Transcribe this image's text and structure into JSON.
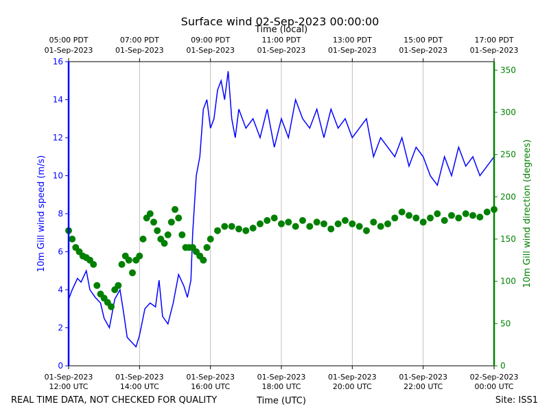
{
  "chart_data": {
    "type": "line",
    "title": "Surface wind 02-Sep-2023 00:00:00",
    "xlabel_bottom": "Time (UTC)",
    "xlabel_top": "Time (local)",
    "ylabel_left": "10m Gill wind speed (m/s)",
    "ylabel_right": "10m Gill wind direction (degrees)",
    "footer_left": "REAL TIME DATA, NOT CHECKED FOR QUALITY",
    "footer_right": "Site: ISS1",
    "xlim_hours": [
      12,
      24
    ],
    "ylim_left": [
      0,
      16
    ],
    "ylim_right": [
      0,
      360
    ],
    "grid": "vertical",
    "colors": {
      "speed": "#0000ff",
      "direction": "#008000",
      "axis": "#000000",
      "grid": "#b0b0b0"
    },
    "left_ticks": [
      0,
      2,
      4,
      6,
      8,
      10,
      12,
      14,
      16
    ],
    "right_ticks": [
      0,
      50,
      100,
      150,
      200,
      250,
      300,
      350
    ],
    "bottom_ticks": [
      {
        "hour": 12,
        "date": "01-Sep-2023",
        "time": "12:00 UTC"
      },
      {
        "hour": 14,
        "date": "01-Sep-2023",
        "time": "14:00 UTC"
      },
      {
        "hour": 16,
        "date": "01-Sep-2023",
        "time": "16:00 UTC"
      },
      {
        "hour": 18,
        "date": "01-Sep-2023",
        "time": "18:00 UTC"
      },
      {
        "hour": 20,
        "date": "01-Sep-2023",
        "time": "20:00 UTC"
      },
      {
        "hour": 22,
        "date": "01-Sep-2023",
        "time": "22:00 UTC"
      },
      {
        "hour": 24,
        "date": "02-Sep-2023",
        "time": "00:00 UTC"
      }
    ],
    "top_ticks": [
      {
        "hour": 12,
        "time": "05:00 PDT",
        "date": "01-Sep-2023"
      },
      {
        "hour": 14,
        "time": "07:00 PDT",
        "date": "01-Sep-2023"
      },
      {
        "hour": 16,
        "time": "09:00 PDT",
        "date": "01-Sep-2023"
      },
      {
        "hour": 18,
        "time": "11:00 PDT",
        "date": "01-Sep-2023"
      },
      {
        "hour": 20,
        "time": "13:00 PDT",
        "date": "01-Sep-2023"
      },
      {
        "hour": 22,
        "time": "15:00 PDT",
        "date": "01-Sep-2023"
      },
      {
        "hour": 24,
        "time": "17:00 PDT",
        "date": "01-Sep-2023"
      }
    ],
    "series": [
      {
        "name": "wind speed",
        "axis": "left",
        "style": "line",
        "x": [
          12.0,
          12.1,
          12.25,
          12.35,
          12.5,
          12.6,
          12.75,
          12.9,
          13.0,
          13.15,
          13.3,
          13.45,
          13.55,
          13.65,
          13.8,
          13.9,
          14.0,
          14.15,
          14.3,
          14.45,
          14.55,
          14.65,
          14.8,
          14.95,
          15.1,
          15.25,
          15.35,
          15.45,
          15.5,
          15.55,
          15.6,
          15.7,
          15.8,
          15.9,
          16.0,
          16.1,
          16.2,
          16.3,
          16.4,
          16.5,
          16.6,
          16.7,
          16.8,
          17.0,
          17.2,
          17.4,
          17.6,
          17.8,
          18.0,
          18.2,
          18.4,
          18.6,
          18.8,
          19.0,
          19.2,
          19.4,
          19.6,
          19.8,
          20.0,
          20.2,
          20.4,
          20.6,
          20.8,
          21.0,
          21.2,
          21.4,
          21.6,
          21.8,
          22.0,
          22.2,
          22.4,
          22.6,
          22.8,
          23.0,
          23.2,
          23.4,
          23.6,
          23.8,
          24.0
        ],
        "y": [
          3.5,
          4.0,
          4.6,
          4.4,
          5.0,
          4.0,
          3.6,
          3.3,
          2.5,
          2.0,
          3.5,
          4.0,
          2.8,
          1.5,
          1.2,
          1.0,
          1.6,
          3.0,
          3.3,
          3.1,
          4.5,
          2.6,
          2.2,
          3.3,
          4.8,
          4.2,
          3.6,
          4.5,
          7.0,
          8.5,
          10.0,
          11.0,
          13.5,
          14.0,
          12.5,
          13.0,
          14.5,
          15.0,
          14.0,
          15.5,
          13.0,
          12.0,
          13.5,
          12.5,
          13.0,
          12.0,
          13.5,
          11.5,
          13.0,
          12.0,
          14.0,
          13.0,
          12.5,
          13.5,
          12.0,
          13.5,
          12.5,
          13.0,
          12.0,
          12.5,
          13.0,
          11.0,
          12.0,
          11.5,
          11.0,
          12.0,
          10.5,
          11.5,
          11.0,
          10.0,
          9.5,
          11.0,
          10.0,
          11.5,
          10.5,
          11.0,
          10.0,
          10.5,
          11.0
        ]
      },
      {
        "name": "wind direction",
        "axis": "right",
        "style": "markers",
        "x": [
          12.0,
          12.1,
          12.2,
          12.3,
          12.4,
          12.5,
          12.6,
          12.7,
          12.8,
          12.9,
          13.0,
          13.1,
          13.2,
          13.3,
          13.4,
          13.5,
          13.6,
          13.7,
          13.8,
          13.9,
          14.0,
          14.1,
          14.2,
          14.3,
          14.4,
          14.5,
          14.6,
          14.7,
          14.8,
          14.9,
          15.0,
          15.1,
          15.2,
          15.3,
          15.4,
          15.5,
          15.6,
          15.7,
          15.8,
          15.9,
          16.0,
          16.2,
          16.4,
          16.6,
          16.8,
          17.0,
          17.2,
          17.4,
          17.6,
          17.8,
          18.0,
          18.2,
          18.4,
          18.6,
          18.8,
          19.0,
          19.2,
          19.4,
          19.6,
          19.8,
          20.0,
          20.2,
          20.4,
          20.6,
          20.8,
          21.0,
          21.2,
          21.4,
          21.6,
          21.8,
          22.0,
          22.2,
          22.4,
          22.6,
          22.8,
          23.0,
          23.2,
          23.4,
          23.6,
          23.8,
          24.0
        ],
        "y": [
          160,
          150,
          140,
          135,
          130,
          128,
          125,
          120,
          95,
          85,
          80,
          75,
          70,
          90,
          95,
          120,
          130,
          125,
          110,
          125,
          130,
          150,
          175,
          180,
          170,
          160,
          150,
          145,
          155,
          170,
          185,
          175,
          155,
          140,
          140,
          140,
          135,
          130,
          125,
          140,
          150,
          160,
          165,
          165,
          162,
          160,
          163,
          168,
          172,
          175,
          168,
          170,
          165,
          172,
          165,
          170,
          168,
          162,
          168,
          172,
          168,
          165,
          160,
          170,
          165,
          168,
          175,
          182,
          178,
          175,
          170,
          175,
          180,
          172,
          178,
          175,
          180,
          178,
          176,
          182,
          185
        ]
      }
    ]
  }
}
